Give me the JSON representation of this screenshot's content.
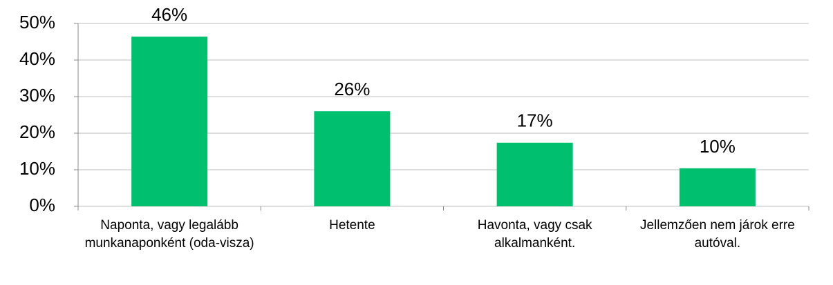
{
  "chart_data": {
    "type": "bar",
    "categories": [
      "Naponta, vagy legalább munkanaponként (oda-visza)",
      "Hetente",
      "Havonta, vagy csak alkalmanként.",
      "Jellemzően nem járok erre autóval."
    ],
    "values": [
      46.4,
      26,
      17.4,
      10.4
    ],
    "value_labels": [
      "46%",
      "26%",
      "17%",
      "10%"
    ],
    "color": "#00c070",
    "ylim": [
      0,
      50
    ],
    "yticks": [
      {
        "value": 0,
        "label": "0%"
      },
      {
        "value": 10,
        "label": "10%"
      },
      {
        "value": 20,
        "label": "20%"
      },
      {
        "value": 30,
        "label": "30%"
      },
      {
        "value": 40,
        "label": "40%"
      },
      {
        "value": 50,
        "label": "50%"
      }
    ],
    "grid": true
  }
}
